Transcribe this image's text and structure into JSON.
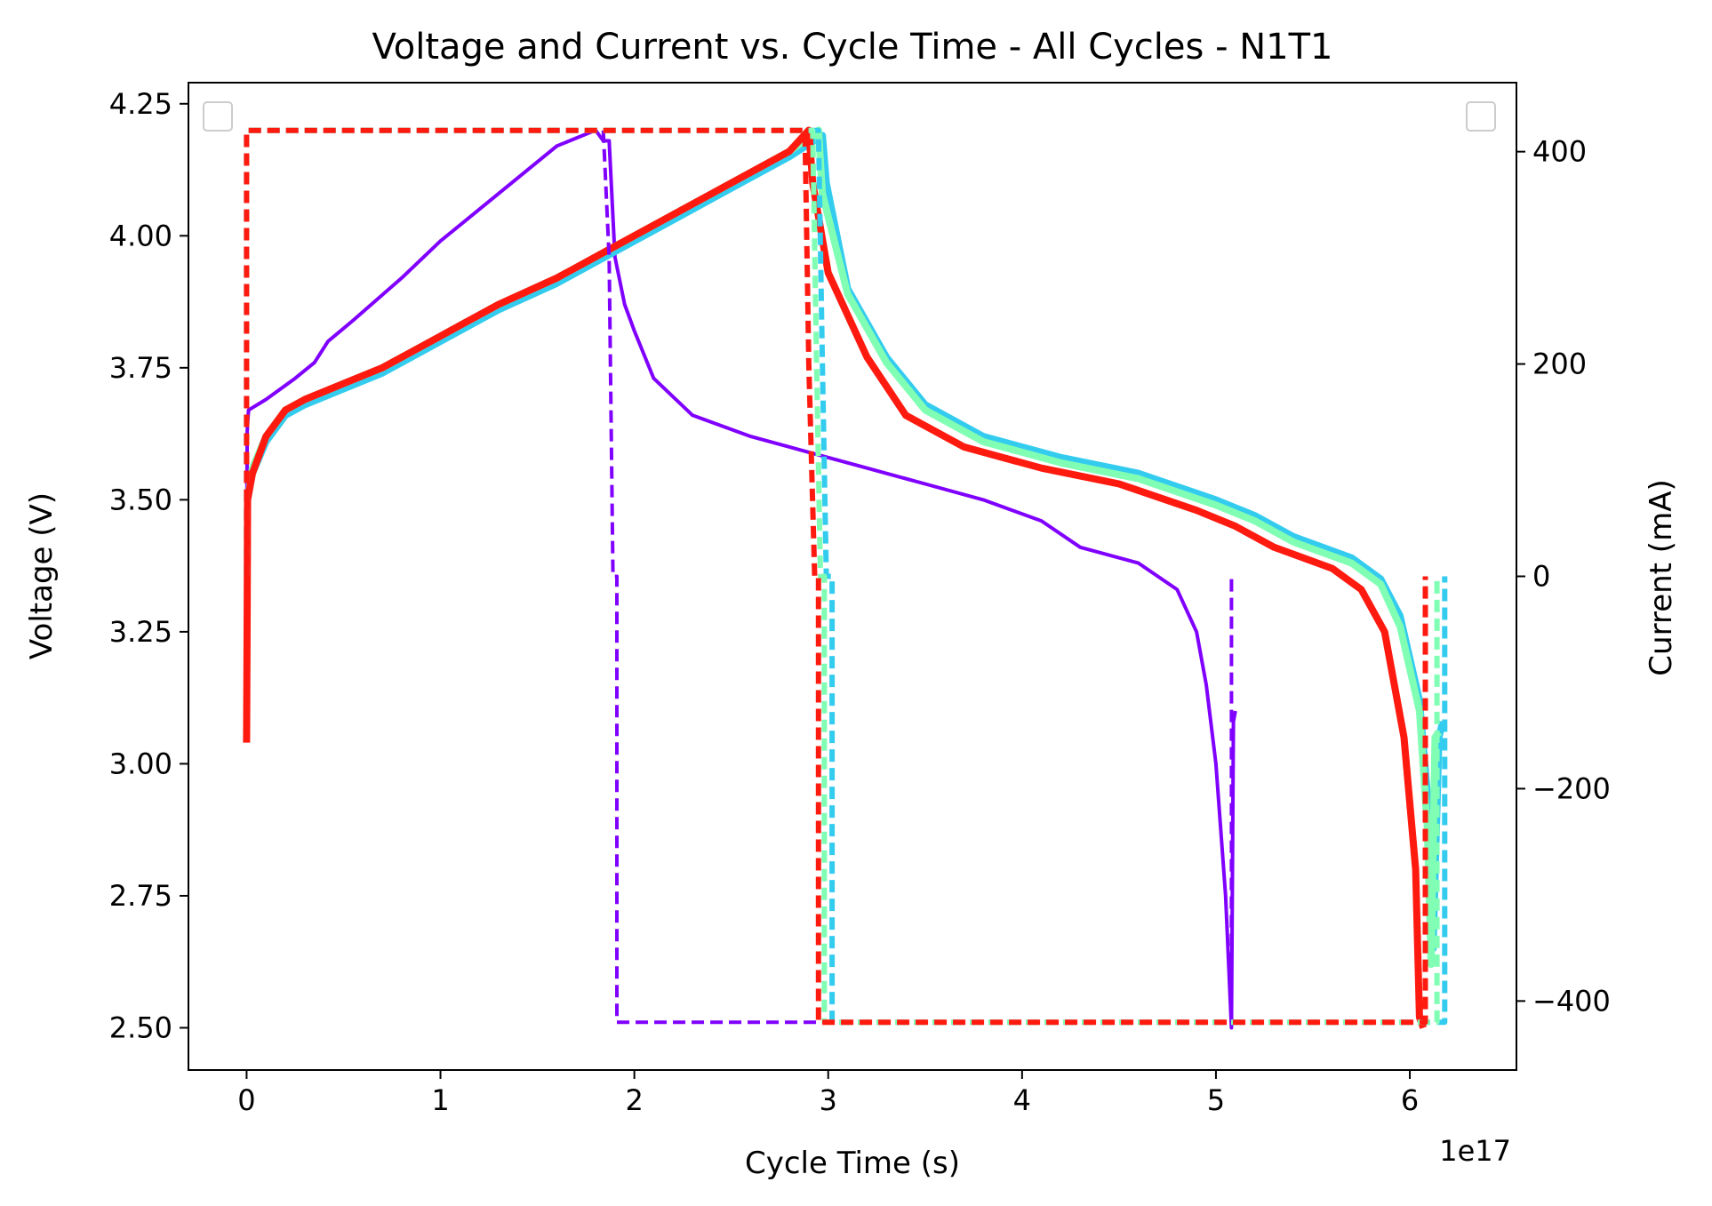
{
  "chart_data": {
    "type": "line",
    "title": "Voltage and Current vs. Cycle Time - All Cycles - N1T1",
    "xlabel": "Cycle Time (s)",
    "ylabel_left": "Voltage (V)",
    "ylabel_right": "Current (mA)",
    "x_offset_label": "1e17",
    "xlim": [
      -0.3,
      6.55
    ],
    "ylim_left": [
      2.42,
      4.29
    ],
    "ylim_right": [
      -465,
      465
    ],
    "x_ticks": [
      0,
      1,
      2,
      3,
      4,
      5,
      6
    ],
    "x_tick_labels": [
      "0",
      "1",
      "2",
      "3",
      "4",
      "5",
      "6"
    ],
    "y_left_ticks": [
      2.5,
      2.75,
      3.0,
      3.25,
      3.5,
      3.75,
      4.0,
      4.25
    ],
    "y_left_tick_labels": [
      "2.50",
      "2.75",
      "3.00",
      "3.25",
      "3.50",
      "3.75",
      "4.00",
      "4.25"
    ],
    "y_right_ticks": [
      -400,
      -200,
      0,
      200,
      400
    ],
    "y_right_tick_labels": [
      "−400",
      "−200",
      "0",
      "200",
      "400"
    ],
    "grid": false,
    "legend": "empty legend boxes at top-left and top-right",
    "series": [
      {
        "axis": "left",
        "style": "solid",
        "color": "#8000ff",
        "width": 4,
        "x": [
          0,
          0.003,
          0.01,
          0.1,
          0.25,
          0.35,
          0.42,
          0.55,
          0.8,
          1.0,
          1.2,
          1.4,
          1.6,
          1.8,
          1.84,
          1.87,
          1.9,
          1.95,
          2.0,
          2.1,
          2.3,
          2.6,
          2.9,
          3.0,
          3.2,
          3.5,
          3.8,
          4.1,
          4.3,
          4.6,
          4.8,
          4.9,
          4.95,
          5.0,
          5.05,
          5.08,
          5.09,
          5.1
        ],
        "y": [
          3.35,
          3.63,
          3.67,
          3.69,
          3.73,
          3.76,
          3.8,
          3.84,
          3.92,
          3.99,
          4.05,
          4.11,
          4.17,
          4.2,
          4.18,
          4.18,
          3.96,
          3.87,
          3.82,
          3.73,
          3.66,
          3.62,
          3.59,
          3.58,
          3.56,
          3.53,
          3.5,
          3.46,
          3.41,
          3.38,
          3.33,
          3.25,
          3.15,
          3.0,
          2.75,
          2.5,
          3.08,
          3.1
        ]
      },
      {
        "axis": "left",
        "style": "solid",
        "color": "#33ccee",
        "width": 8,
        "x": [
          0.005,
          0.03,
          0.1,
          0.2,
          0.3,
          0.5,
          0.7,
          0.9,
          1.0,
          1.1,
          1.3,
          1.6,
          1.9,
          2.2,
          2.5,
          2.8,
          2.97,
          2.99,
          3.1,
          3.3,
          3.5,
          3.8,
          4.2,
          4.6,
          5.0,
          5.2,
          5.4,
          5.7,
          5.85,
          5.95,
          6.05,
          6.1,
          6.12,
          6.15,
          6.17
        ],
        "y": [
          3.5,
          3.55,
          3.61,
          3.66,
          3.68,
          3.71,
          3.74,
          3.78,
          3.8,
          3.82,
          3.86,
          3.91,
          3.97,
          4.03,
          4.09,
          4.15,
          4.19,
          4.1,
          3.9,
          3.77,
          3.68,
          3.62,
          3.58,
          3.55,
          3.5,
          3.47,
          3.43,
          3.39,
          3.35,
          3.28,
          3.12,
          2.9,
          2.65,
          3.05,
          3.08
        ]
      },
      {
        "axis": "left",
        "style": "solid",
        "color": "#80ffb4",
        "width": 8,
        "x": [
          0.005,
          0.03,
          0.1,
          0.2,
          0.3,
          0.5,
          0.7,
          0.9,
          1.0,
          1.1,
          1.3,
          1.6,
          1.9,
          2.2,
          2.5,
          2.8,
          2.95,
          2.97,
          3.1,
          3.3,
          3.5,
          3.8,
          4.2,
          4.6,
          5.0,
          5.2,
          5.4,
          5.7,
          5.85,
          5.95,
          6.05,
          6.09,
          6.11,
          6.13,
          6.15
        ],
        "y": [
          3.5,
          3.56,
          3.62,
          3.67,
          3.69,
          3.72,
          3.75,
          3.79,
          3.81,
          3.83,
          3.87,
          3.92,
          3.98,
          4.04,
          4.1,
          4.16,
          4.2,
          4.08,
          3.89,
          3.76,
          3.67,
          3.61,
          3.57,
          3.54,
          3.49,
          3.46,
          3.42,
          3.38,
          3.34,
          3.26,
          3.1,
          2.88,
          2.62,
          3.05,
          3.06
        ]
      },
      {
        "axis": "left",
        "style": "solid",
        "color": "#ff1a10",
        "width": 8,
        "x": [
          0.0,
          0.003,
          0.005,
          0.03,
          0.1,
          0.2,
          0.3,
          0.5,
          0.7,
          0.9,
          1.0,
          1.1,
          1.3,
          1.6,
          1.9,
          2.2,
          2.5,
          2.8,
          2.9,
          2.92,
          3.0,
          3.2,
          3.4,
          3.7,
          4.1,
          4.5,
          4.9,
          5.1,
          5.3,
          5.6,
          5.75,
          5.87,
          5.97,
          6.03,
          6.05,
          6.07
        ],
        "y": [
          3.04,
          3.3,
          3.5,
          3.55,
          3.62,
          3.67,
          3.69,
          3.72,
          3.75,
          3.79,
          3.81,
          3.83,
          3.87,
          3.92,
          3.98,
          4.04,
          4.1,
          4.16,
          4.2,
          4.1,
          3.93,
          3.77,
          3.66,
          3.6,
          3.56,
          3.53,
          3.48,
          3.45,
          3.41,
          3.37,
          3.33,
          3.25,
          3.05,
          2.8,
          2.52,
          2.5
        ]
      },
      {
        "axis": "right",
        "style": "dashed",
        "color": "#8000ff",
        "width": 4,
        "x": [
          0,
          0,
          1.84,
          1.87,
          1.89,
          1.89,
          1.91,
          1.91,
          5.08,
          5.08
        ],
        "y": [
          0,
          420,
          420,
          300,
          0,
          0,
          0,
          -420,
          -420,
          0
        ]
      },
      {
        "axis": "right",
        "style": "dashed",
        "color": "#33ccee",
        "width": 6,
        "x": [
          0,
          0,
          2.95,
          2.97,
          2.99,
          3.0,
          3.02,
          3.02,
          6.18,
          6.18
        ],
        "y": [
          0,
          420,
          420,
          200,
          0,
          0,
          0,
          -420,
          -420,
          0
        ]
      },
      {
        "axis": "right",
        "style": "dashed",
        "color": "#80ffb4",
        "width": 6,
        "x": [
          0,
          0,
          2.92,
          2.94,
          2.96,
          2.97,
          2.98,
          2.98,
          6.14,
          6.14
        ],
        "y": [
          0,
          420,
          420,
          200,
          0,
          0,
          0,
          -420,
          -420,
          0
        ]
      },
      {
        "axis": "right",
        "style": "dashed",
        "color": "#ff1a10",
        "width": 6,
        "x": [
          0,
          0,
          2.88,
          2.9,
          2.93,
          2.94,
          2.95,
          2.95,
          6.08,
          6.08
        ],
        "y": [
          0,
          420,
          420,
          200,
          0,
          0,
          0,
          -420,
          -420,
          0
        ]
      }
    ]
  }
}
